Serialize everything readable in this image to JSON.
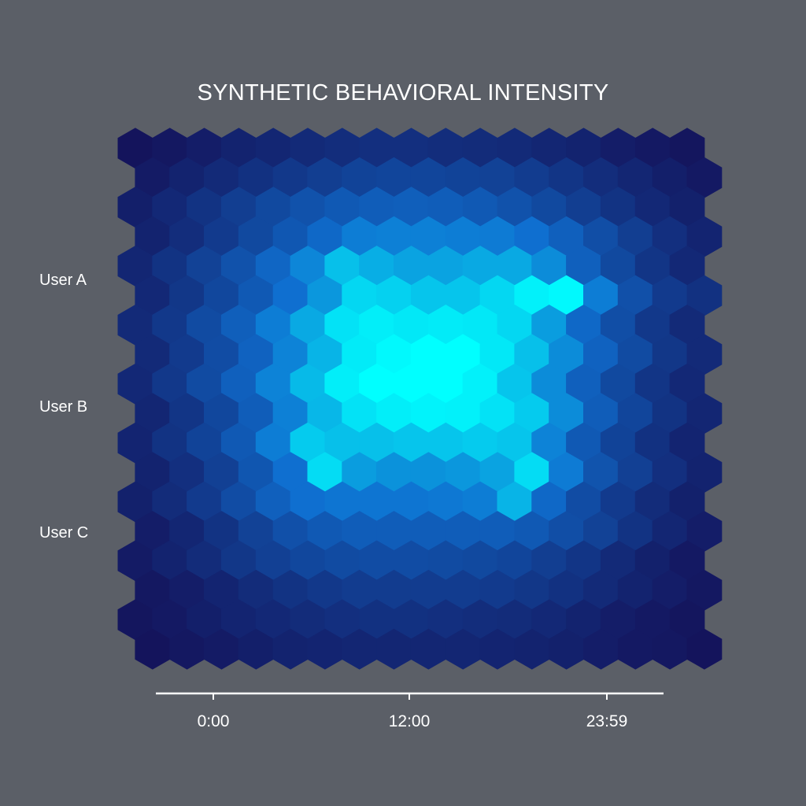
{
  "chart_data": {
    "type": "heatmap",
    "subtype": "hexbin",
    "title": "SYNTHETIC BEHAVIORAL INTENSITY",
    "xlabel": "",
    "ylabel": "",
    "row_labels": [
      "User A",
      "User B",
      "User C"
    ],
    "x_ticks": [
      "0:00",
      "12:00",
      "23:59"
    ],
    "color_scale": {
      "low": "#14145c",
      "mid": "#0f6fd0",
      "high": "#00ffff"
    },
    "grid": false,
    "legend": "none",
    "intensity": [
      [
        0.0,
        0.02,
        0.05,
        0.08,
        0.1,
        0.12,
        0.14,
        0.15,
        0.15,
        0.14,
        0.13,
        0.12,
        0.1,
        0.08,
        0.05,
        0.03,
        0.01
      ],
      [
        0.04,
        0.08,
        0.12,
        0.16,
        0.2,
        0.23,
        0.26,
        0.27,
        0.27,
        0.26,
        0.25,
        0.22,
        0.18,
        0.14,
        0.1,
        0.06,
        0.03
      ],
      [
        0.06,
        0.11,
        0.17,
        0.23,
        0.29,
        0.34,
        0.38,
        0.4,
        0.41,
        0.4,
        0.38,
        0.34,
        0.29,
        0.23,
        0.17,
        0.11,
        0.07
      ],
      [
        0.08,
        0.14,
        0.21,
        0.29,
        0.37,
        0.46,
        0.55,
        0.56,
        0.56,
        0.55,
        0.54,
        0.5,
        0.42,
        0.32,
        0.23,
        0.15,
        0.09
      ],
      [
        0.1,
        0.17,
        0.25,
        0.34,
        0.45,
        0.58,
        0.78,
        0.72,
        0.68,
        0.68,
        0.7,
        0.7,
        0.6,
        0.42,
        0.29,
        0.18,
        0.11
      ],
      [
        0.11,
        0.19,
        0.28,
        0.38,
        0.5,
        0.64,
        0.86,
        0.84,
        0.8,
        0.8,
        0.86,
        0.95,
        0.98,
        0.55,
        0.33,
        0.21,
        0.16
      ],
      [
        0.12,
        0.2,
        0.3,
        0.41,
        0.55,
        0.7,
        0.9,
        0.94,
        0.92,
        0.93,
        0.92,
        0.86,
        0.66,
        0.46,
        0.32,
        0.2,
        0.12
      ],
      [
        0.12,
        0.21,
        0.31,
        0.43,
        0.57,
        0.74,
        0.93,
        0.98,
        1.0,
        1.0,
        0.92,
        0.78,
        0.6,
        0.43,
        0.3,
        0.19,
        0.12
      ],
      [
        0.11,
        0.2,
        0.3,
        0.42,
        0.57,
        0.76,
        0.94,
        1.0,
        1.0,
        1.0,
        0.95,
        0.8,
        0.6,
        0.42,
        0.29,
        0.18,
        0.11
      ],
      [
        0.1,
        0.18,
        0.28,
        0.4,
        0.56,
        0.75,
        0.9,
        0.94,
        0.96,
        0.95,
        0.9,
        0.82,
        0.6,
        0.4,
        0.27,
        0.17,
        0.1
      ],
      [
        0.09,
        0.17,
        0.26,
        0.38,
        0.55,
        0.82,
        0.78,
        0.78,
        0.8,
        0.8,
        0.82,
        0.8,
        0.57,
        0.38,
        0.26,
        0.16,
        0.09
      ],
      [
        0.08,
        0.15,
        0.24,
        0.36,
        0.5,
        0.88,
        0.66,
        0.62,
        0.62,
        0.64,
        0.68,
        0.88,
        0.54,
        0.35,
        0.24,
        0.15,
        0.08
      ],
      [
        0.07,
        0.13,
        0.21,
        0.31,
        0.42,
        0.5,
        0.52,
        0.52,
        0.52,
        0.53,
        0.55,
        0.74,
        0.46,
        0.31,
        0.21,
        0.13,
        0.07
      ],
      [
        0.05,
        0.1,
        0.17,
        0.25,
        0.33,
        0.38,
        0.4,
        0.4,
        0.4,
        0.4,
        0.4,
        0.38,
        0.32,
        0.25,
        0.17,
        0.1,
        0.05
      ],
      [
        0.04,
        0.08,
        0.13,
        0.19,
        0.24,
        0.28,
        0.3,
        0.31,
        0.31,
        0.3,
        0.29,
        0.27,
        0.23,
        0.18,
        0.12,
        0.07,
        0.03
      ],
      [
        0.02,
        0.05,
        0.09,
        0.13,
        0.17,
        0.2,
        0.22,
        0.22,
        0.22,
        0.22,
        0.21,
        0.19,
        0.16,
        0.12,
        0.08,
        0.05,
        0.02
      ],
      [
        0.01,
        0.03,
        0.06,
        0.09,
        0.11,
        0.13,
        0.15,
        0.16,
        0.16,
        0.15,
        0.14,
        0.13,
        0.11,
        0.08,
        0.05,
        0.03,
        0.01
      ],
      [
        0.0,
        0.02,
        0.04,
        0.06,
        0.08,
        0.09,
        0.1,
        0.1,
        0.1,
        0.1,
        0.09,
        0.08,
        0.07,
        0.05,
        0.03,
        0.02,
        0.0
      ]
    ]
  }
}
